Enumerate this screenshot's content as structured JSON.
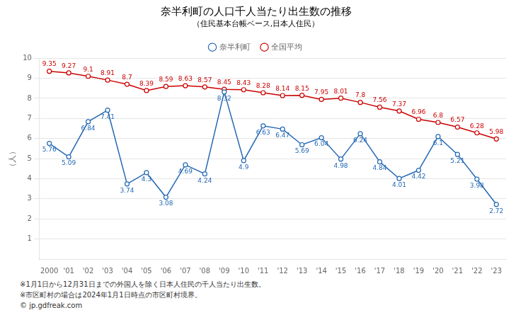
{
  "chart_data": {
    "type": "line",
    "title": "奈半利町の人口千人当たり出生数の推移",
    "subtitle": "（住民基本台帳ベース,日本人住民）",
    "y_label": "（人）",
    "categories": [
      "2000",
      "'01",
      "'02",
      "'03",
      "'04",
      "'05",
      "'06",
      "'07",
      "'08",
      "'09",
      "'10",
      "'11",
      "'12",
      "'13",
      "'14",
      "'15",
      "'16",
      "'17",
      "'18",
      "'19",
      "'20",
      "'21",
      "'22",
      "'23"
    ],
    "series": [
      {
        "name": "奈半利町",
        "color": "#2468b4",
        "marker": "circle",
        "values": [
          5.76,
          5.09,
          6.84,
          7.41,
          3.74,
          4.3,
          3.08,
          4.69,
          4.24,
          8.32,
          4.9,
          6.63,
          6.47,
          5.69,
          6.04,
          4.98,
          6.24,
          4.84,
          4.01,
          4.42,
          6.1,
          5.21,
          3.98,
          2.72
        ]
      },
      {
        "name": "全国平均",
        "color": "#cc0000",
        "marker": "circle",
        "values": [
          9.35,
          9.27,
          9.1,
          8.91,
          8.7,
          8.39,
          8.59,
          8.63,
          8.57,
          8.45,
          8.43,
          8.28,
          8.14,
          8.15,
          7.95,
          8.01,
          7.8,
          7.56,
          7.37,
          6.96,
          6.8,
          6.57,
          6.28,
          5.98
        ]
      }
    ],
    "ylim": [
      0,
      10
    ],
    "yticks": [
      1,
      2,
      3,
      4,
      5,
      6,
      7,
      8,
      9,
      10
    ],
    "grid": true,
    "legend": "top",
    "data_labels": true,
    "annotations": [
      "※1月1日から12月31日までの外国人を除く日本人住民の千人当たり出生数。",
      "※市区町村の場合は2024年1月1日時点の市区町村境界。",
      "© jp.gdfreak.com"
    ]
  }
}
